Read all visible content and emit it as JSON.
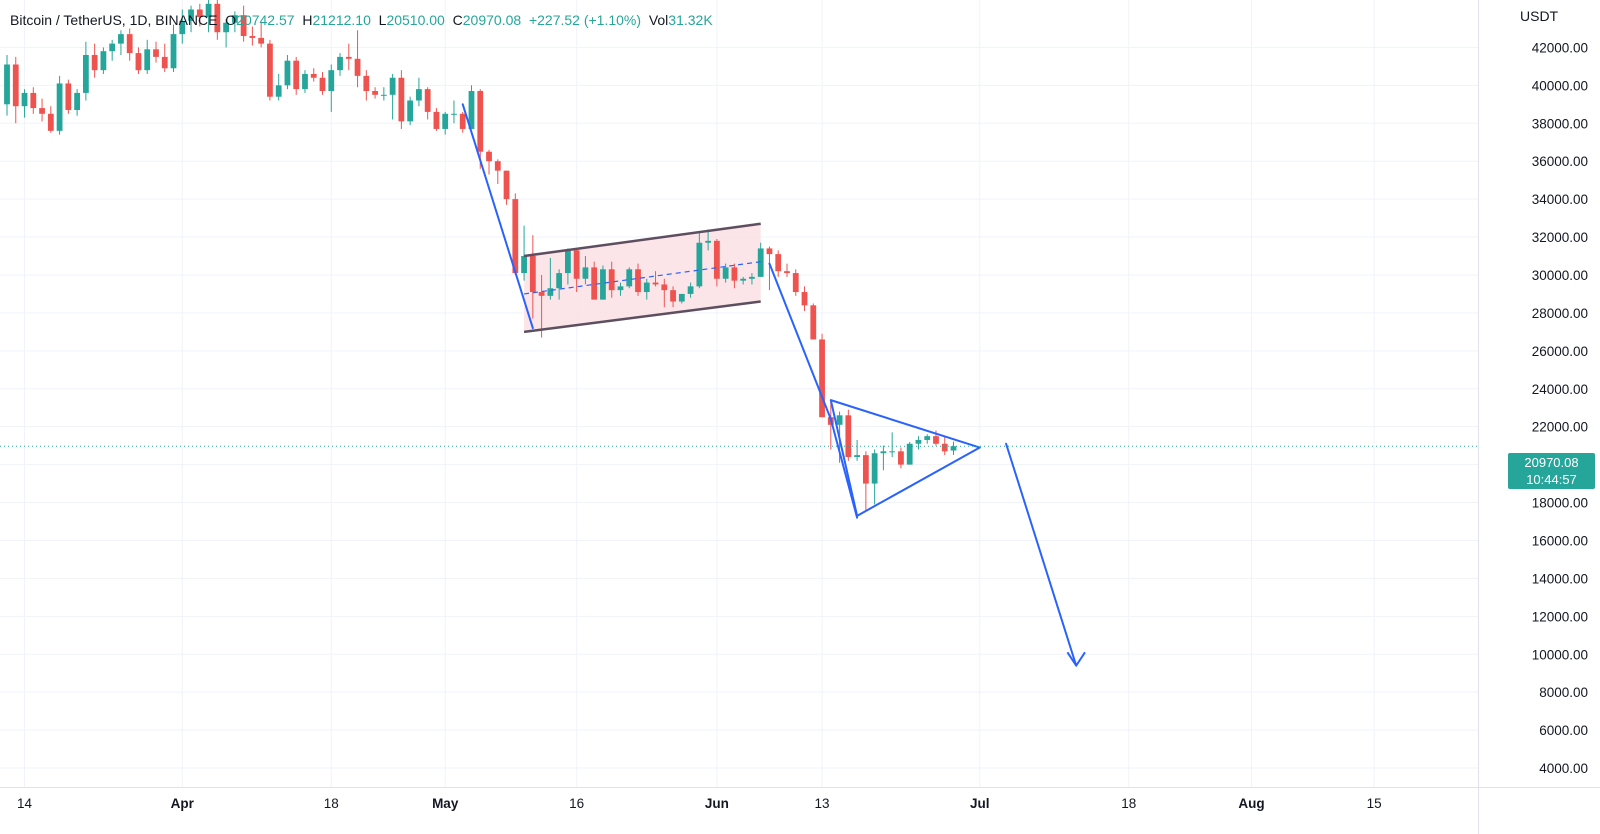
{
  "header": {
    "symbol": "Bitcoin / TetherUS, 1D, BINANCE",
    "o_label": "O",
    "o_value": "20742.57",
    "h_label": "H",
    "h_value": "21212.10",
    "l_label": "L",
    "l_value": "20510.00",
    "c_label": "C",
    "c_value": "20970.08",
    "change": "+227.52 (+1.10%)",
    "vol_label": "Vol",
    "vol_value": "31.32K"
  },
  "price_axis": {
    "unit": "USDT",
    "current_price": "20970.08",
    "countdown": "10:44:57"
  },
  "colors": {
    "up": "#26a69a",
    "down": "#ef5350",
    "drawing": "#2962ff",
    "channel": "#5d4e60",
    "channel_fill": "#fbe0e4"
  },
  "chart_data": {
    "type": "candlestick",
    "title": "Bitcoin / TetherUS, 1D, BINANCE",
    "y_unit": "USDT",
    "ylim": [
      3000,
      44500
    ],
    "y_ticks": [
      "42000.00",
      "40000.00",
      "38000.00",
      "36000.00",
      "34000.00",
      "32000.00",
      "30000.00",
      "28000.00",
      "26000.00",
      "24000.00",
      "22000.00",
      "20000.00",
      "18000.00",
      "16000.00",
      "14000.00",
      "12000.00",
      "10000.00",
      "8000.00",
      "6000.00",
      "4000.00"
    ],
    "x_range": [
      "2022-03-12",
      "2022-08-20"
    ],
    "x_ticks": [
      {
        "date": "2022-03-14",
        "label": "14"
      },
      {
        "date": "2022-04-01",
        "label": "Apr"
      },
      {
        "date": "2022-04-18",
        "label": "18"
      },
      {
        "date": "2022-05-01",
        "label": "May"
      },
      {
        "date": "2022-05-16",
        "label": "16"
      },
      {
        "date": "2022-06-01",
        "label": "Jun"
      },
      {
        "date": "2022-06-13",
        "label": "13"
      },
      {
        "date": "2022-07-01",
        "label": "Jul"
      },
      {
        "date": "2022-07-18",
        "label": "18"
      },
      {
        "date": "2022-08-01",
        "label": "Aug"
      },
      {
        "date": "2022-08-15",
        "label": "15"
      }
    ],
    "grid": true,
    "current_price_line": 20970.08,
    "candles": [
      {
        "date": "2022-03-12",
        "o": 39000,
        "h": 41600,
        "l": 38400,
        "c": 41100
      },
      {
        "date": "2022-03-13",
        "o": 41100,
        "h": 41500,
        "l": 38000,
        "c": 38900
      },
      {
        "date": "2022-03-14",
        "o": 38900,
        "h": 39800,
        "l": 38300,
        "c": 39600
      },
      {
        "date": "2022-03-15",
        "o": 39600,
        "h": 39900,
        "l": 38500,
        "c": 38800
      },
      {
        "date": "2022-03-16",
        "o": 38800,
        "h": 39300,
        "l": 38100,
        "c": 38500
      },
      {
        "date": "2022-03-17",
        "o": 38500,
        "h": 38900,
        "l": 37500,
        "c": 37600
      },
      {
        "date": "2022-03-18",
        "o": 37600,
        "h": 40500,
        "l": 37400,
        "c": 40100
      },
      {
        "date": "2022-03-19",
        "o": 40100,
        "h": 40300,
        "l": 38500,
        "c": 38700
      },
      {
        "date": "2022-03-20",
        "o": 38700,
        "h": 39800,
        "l": 38400,
        "c": 39600
      },
      {
        "date": "2022-03-21",
        "o": 39600,
        "h": 42300,
        "l": 39200,
        "c": 41600
      },
      {
        "date": "2022-03-22",
        "o": 41600,
        "h": 42200,
        "l": 40400,
        "c": 40800
      },
      {
        "date": "2022-03-23",
        "o": 40800,
        "h": 42000,
        "l": 40600,
        "c": 41800
      },
      {
        "date": "2022-03-24",
        "o": 41800,
        "h": 42400,
        "l": 41300,
        "c": 42200
      },
      {
        "date": "2022-03-25",
        "o": 42200,
        "h": 42900,
        "l": 41600,
        "c": 42700
      },
      {
        "date": "2022-03-26",
        "o": 42700,
        "h": 43000,
        "l": 41300,
        "c": 41700
      },
      {
        "date": "2022-03-27",
        "o": 41700,
        "h": 42000,
        "l": 40600,
        "c": 40800
      },
      {
        "date": "2022-03-28",
        "o": 40800,
        "h": 42400,
        "l": 40600,
        "c": 41900
      },
      {
        "date": "2022-03-29",
        "o": 41900,
        "h": 42300,
        "l": 41200,
        "c": 41500
      },
      {
        "date": "2022-03-30",
        "o": 41500,
        "h": 42200,
        "l": 40700,
        "c": 40900
      },
      {
        "date": "2022-03-31",
        "o": 40900,
        "h": 43200,
        "l": 40700,
        "c": 42700
      },
      {
        "date": "2022-04-01",
        "o": 42700,
        "h": 44000,
        "l": 42200,
        "c": 43400
      },
      {
        "date": "2022-04-02",
        "o": 43400,
        "h": 44200,
        "l": 42800,
        "c": 44000
      },
      {
        "date": "2022-04-03",
        "o": 44000,
        "h": 44300,
        "l": 43100,
        "c": 43600
      },
      {
        "date": "2022-04-04",
        "o": 43600,
        "h": 44500,
        "l": 42800,
        "c": 44300
      },
      {
        "date": "2022-04-05",
        "o": 44300,
        "h": 44500,
        "l": 42400,
        "c": 42800
      },
      {
        "date": "2022-04-06",
        "o": 42800,
        "h": 43500,
        "l": 42000,
        "c": 43300
      },
      {
        "date": "2022-04-07",
        "o": 43300,
        "h": 43900,
        "l": 42800,
        "c": 43700
      },
      {
        "date": "2022-04-08",
        "o": 43700,
        "h": 44200,
        "l": 42300,
        "c": 42600
      },
      {
        "date": "2022-04-09",
        "o": 42600,
        "h": 43100,
        "l": 42100,
        "c": 42500
      },
      {
        "date": "2022-04-10",
        "o": 42500,
        "h": 43300,
        "l": 42000,
        "c": 42200
      },
      {
        "date": "2022-04-11",
        "o": 42200,
        "h": 42400,
        "l": 39200,
        "c": 39400
      },
      {
        "date": "2022-04-12",
        "o": 39400,
        "h": 40600,
        "l": 39200,
        "c": 40000
      },
      {
        "date": "2022-04-13",
        "o": 40000,
        "h": 41600,
        "l": 39800,
        "c": 41300
      },
      {
        "date": "2022-04-14",
        "o": 41300,
        "h": 41500,
        "l": 39500,
        "c": 39800
      },
      {
        "date": "2022-04-15",
        "o": 39800,
        "h": 40800,
        "l": 39600,
        "c": 40600
      },
      {
        "date": "2022-04-16",
        "o": 40600,
        "h": 40900,
        "l": 40200,
        "c": 40400
      },
      {
        "date": "2022-04-17",
        "o": 40400,
        "h": 40700,
        "l": 39500,
        "c": 39700
      },
      {
        "date": "2022-04-18",
        "o": 39700,
        "h": 41100,
        "l": 38600,
        "c": 40800
      },
      {
        "date": "2022-04-19",
        "o": 40800,
        "h": 41700,
        "l": 40500,
        "c": 41500
      },
      {
        "date": "2022-04-20",
        "o": 41500,
        "h": 42200,
        "l": 40800,
        "c": 41400
      },
      {
        "date": "2022-04-21",
        "o": 41400,
        "h": 42900,
        "l": 39900,
        "c": 40500
      },
      {
        "date": "2022-04-22",
        "o": 40500,
        "h": 40800,
        "l": 39200,
        "c": 39700
      },
      {
        "date": "2022-04-23",
        "o": 39700,
        "h": 39900,
        "l": 39300,
        "c": 39500
      },
      {
        "date": "2022-04-24",
        "o": 39500,
        "h": 39900,
        "l": 39200,
        "c": 39500
      },
      {
        "date": "2022-04-25",
        "o": 39500,
        "h": 40600,
        "l": 38200,
        "c": 40400
      },
      {
        "date": "2022-04-26",
        "o": 40400,
        "h": 40800,
        "l": 37700,
        "c": 38100
      },
      {
        "date": "2022-04-27",
        "o": 38100,
        "h": 39400,
        "l": 37900,
        "c": 39200
      },
      {
        "date": "2022-04-28",
        "o": 39200,
        "h": 40400,
        "l": 38900,
        "c": 39800
      },
      {
        "date": "2022-04-29",
        "o": 39800,
        "h": 39900,
        "l": 38200,
        "c": 38600
      },
      {
        "date": "2022-04-30",
        "o": 38600,
        "h": 38800,
        "l": 37600,
        "c": 37700
      },
      {
        "date": "2022-05-01",
        "o": 37700,
        "h": 38600,
        "l": 37400,
        "c": 38500
      },
      {
        "date": "2022-05-02",
        "o": 38500,
        "h": 39200,
        "l": 38000,
        "c": 38500
      },
      {
        "date": "2022-05-03",
        "o": 38500,
        "h": 38600,
        "l": 37500,
        "c": 37700
      },
      {
        "date": "2022-05-04",
        "o": 37700,
        "h": 40000,
        "l": 37700,
        "c": 39700
      },
      {
        "date": "2022-05-05",
        "o": 39700,
        "h": 39800,
        "l": 35600,
        "c": 36500
      },
      {
        "date": "2022-05-06",
        "o": 36500,
        "h": 36600,
        "l": 35300,
        "c": 36000
      },
      {
        "date": "2022-05-07",
        "o": 36000,
        "h": 36100,
        "l": 34800,
        "c": 35500
      },
      {
        "date": "2022-05-08",
        "o": 35500,
        "h": 35500,
        "l": 33700,
        "c": 34000
      },
      {
        "date": "2022-05-09",
        "o": 34000,
        "h": 34300,
        "l": 30000,
        "c": 30100
      },
      {
        "date": "2022-05-10",
        "o": 30100,
        "h": 32600,
        "l": 29700,
        "c": 31000
      },
      {
        "date": "2022-05-11",
        "o": 31000,
        "h": 32100,
        "l": 27700,
        "c": 29100
      },
      {
        "date": "2022-05-12",
        "o": 29100,
        "h": 30000,
        "l": 26700,
        "c": 28900
      },
      {
        "date": "2022-05-13",
        "o": 28900,
        "h": 30900,
        "l": 28700,
        "c": 29300
      },
      {
        "date": "2022-05-14",
        "o": 29300,
        "h": 30300,
        "l": 28700,
        "c": 30100
      },
      {
        "date": "2022-05-15",
        "o": 30100,
        "h": 31400,
        "l": 29500,
        "c": 31300
      },
      {
        "date": "2022-05-16",
        "o": 31300,
        "h": 31400,
        "l": 29100,
        "c": 29800
      },
      {
        "date": "2022-05-17",
        "o": 29800,
        "h": 31000,
        "l": 29500,
        "c": 30400
      },
      {
        "date": "2022-05-18",
        "o": 30400,
        "h": 30700,
        "l": 28700,
        "c": 28700
      },
      {
        "date": "2022-05-19",
        "o": 28700,
        "h": 30500,
        "l": 28700,
        "c": 30300
      },
      {
        "date": "2022-05-20",
        "o": 30300,
        "h": 30700,
        "l": 28800,
        "c": 29200
      },
      {
        "date": "2022-05-21",
        "o": 29200,
        "h": 29600,
        "l": 28900,
        "c": 29400
      },
      {
        "date": "2022-05-22",
        "o": 29400,
        "h": 30400,
        "l": 29300,
        "c": 30300
      },
      {
        "date": "2022-05-23",
        "o": 30300,
        "h": 30600,
        "l": 28900,
        "c": 29100
      },
      {
        "date": "2022-05-24",
        "o": 29100,
        "h": 29800,
        "l": 28700,
        "c": 29600
      },
      {
        "date": "2022-05-25",
        "o": 29600,
        "h": 30200,
        "l": 29400,
        "c": 29500
      },
      {
        "date": "2022-05-26",
        "o": 29500,
        "h": 29800,
        "l": 28300,
        "c": 29200
      },
      {
        "date": "2022-05-27",
        "o": 29200,
        "h": 29400,
        "l": 28300,
        "c": 28600
      },
      {
        "date": "2022-05-28",
        "o": 28600,
        "h": 29000,
        "l": 28500,
        "c": 29000
      },
      {
        "date": "2022-05-29",
        "o": 29000,
        "h": 29600,
        "l": 28800,
        "c": 29400
      },
      {
        "date": "2022-05-30",
        "o": 29400,
        "h": 32200,
        "l": 29300,
        "c": 31700
      },
      {
        "date": "2022-05-31",
        "o": 31700,
        "h": 32400,
        "l": 31300,
        "c": 31800
      },
      {
        "date": "2022-06-01",
        "o": 31800,
        "h": 31900,
        "l": 29400,
        "c": 29800
      },
      {
        "date": "2022-06-02",
        "o": 29800,
        "h": 30600,
        "l": 29600,
        "c": 30400
      },
      {
        "date": "2022-06-03",
        "o": 30400,
        "h": 30600,
        "l": 29300,
        "c": 29700
      },
      {
        "date": "2022-06-04",
        "o": 29700,
        "h": 29900,
        "l": 29500,
        "c": 29800
      },
      {
        "date": "2022-06-05",
        "o": 29800,
        "h": 30100,
        "l": 29500,
        "c": 29900
      },
      {
        "date": "2022-06-06",
        "o": 29900,
        "h": 31700,
        "l": 29900,
        "c": 31400
      },
      {
        "date": "2022-06-07",
        "o": 31400,
        "h": 31500,
        "l": 29200,
        "c": 31100
      },
      {
        "date": "2022-06-08",
        "o": 31100,
        "h": 31300,
        "l": 29900,
        "c": 30200
      },
      {
        "date": "2022-06-09",
        "o": 30200,
        "h": 30600,
        "l": 29900,
        "c": 30100
      },
      {
        "date": "2022-06-10",
        "o": 30100,
        "h": 30300,
        "l": 28900,
        "c": 29100
      },
      {
        "date": "2022-06-11",
        "o": 29100,
        "h": 29400,
        "l": 28100,
        "c": 28400
      },
      {
        "date": "2022-06-12",
        "o": 28400,
        "h": 28500,
        "l": 26600,
        "c": 26600
      },
      {
        "date": "2022-06-13",
        "o": 26600,
        "h": 26900,
        "l": 22600,
        "c": 22500
      },
      {
        "date": "2022-06-14",
        "o": 22500,
        "h": 23300,
        "l": 20800,
        "c": 22100
      },
      {
        "date": "2022-06-15",
        "o": 22100,
        "h": 22800,
        "l": 20100,
        "c": 22600
      },
      {
        "date": "2022-06-16",
        "o": 22600,
        "h": 22900,
        "l": 20200,
        "c": 20400
      },
      {
        "date": "2022-06-17",
        "o": 20400,
        "h": 21300,
        "l": 20200,
        "c": 20500
      },
      {
        "date": "2022-06-18",
        "o": 20500,
        "h": 20700,
        "l": 17600,
        "c": 19000
      },
      {
        "date": "2022-06-19",
        "o": 19000,
        "h": 20800,
        "l": 17900,
        "c": 20600
      },
      {
        "date": "2022-06-20",
        "o": 20600,
        "h": 21000,
        "l": 19700,
        "c": 20700
      },
      {
        "date": "2022-06-21",
        "o": 20700,
        "h": 21700,
        "l": 20400,
        "c": 20700
      },
      {
        "date": "2022-06-22",
        "o": 20700,
        "h": 20900,
        "l": 19800,
        "c": 20000
      },
      {
        "date": "2022-06-23",
        "o": 20000,
        "h": 21200,
        "l": 20000,
        "c": 21100
      },
      {
        "date": "2022-06-24",
        "o": 21100,
        "h": 21500,
        "l": 20800,
        "c": 21300
      },
      {
        "date": "2022-06-25",
        "o": 21300,
        "h": 21600,
        "l": 21100,
        "c": 21500
      },
      {
        "date": "2022-06-26",
        "o": 21500,
        "h": 21800,
        "l": 21000,
        "c": 21100
      },
      {
        "date": "2022-06-27",
        "o": 21100,
        "h": 21500,
        "l": 20500,
        "c": 20700
      },
      {
        "date": "2022-06-28",
        "o": 20742.57,
        "h": 21212.1,
        "l": 20510,
        "c": 20970.08
      }
    ],
    "drawings": {
      "trendlines": [
        {
          "from": {
            "date": "2022-05-03",
            "price": 39000
          },
          "to": {
            "date": "2022-05-11",
            "price": 27200
          }
        },
        {
          "from": {
            "date": "2022-06-07",
            "price": 30600
          },
          "to": {
            "date": "2022-06-14",
            "price": 22400
          }
        },
        {
          "from": {
            "date": "2022-06-14",
            "price": 22400
          },
          "to": {
            "date": "2022-06-17",
            "price": 17200
          }
        },
        {
          "from": {
            "date": "2022-07-04",
            "price": 21100
          },
          "to": {
            "date": "2022-07-12",
            "price": 9400
          }
        }
      ],
      "arrowhead": {
        "tip": {
          "date": "2022-07-12",
          "price": 9400
        },
        "left": {
          "date": "2022-07-11",
          "price": 10100
        },
        "right": {
          "date": "2022-07-13",
          "price": 10100
        }
      },
      "channel": {
        "upper": {
          "from": {
            "date": "2022-05-10",
            "price": 31000
          },
          "to": {
            "date": "2022-06-06",
            "price": 32700
          }
        },
        "lower": {
          "from": {
            "date": "2022-05-10",
            "price": 27000
          },
          "to": {
            "date": "2022-06-06",
            "price": 28600
          }
        },
        "mid": {
          "from": {
            "date": "2022-05-10",
            "price": 29000
          },
          "to": {
            "date": "2022-06-06",
            "price": 30700
          }
        }
      },
      "triangle": {
        "points": [
          {
            "date": "2022-06-14",
            "price": 23400
          },
          {
            "date": "2022-07-01",
            "price": 20900
          },
          {
            "date": "2022-06-17",
            "price": 17300
          }
        ]
      }
    }
  }
}
